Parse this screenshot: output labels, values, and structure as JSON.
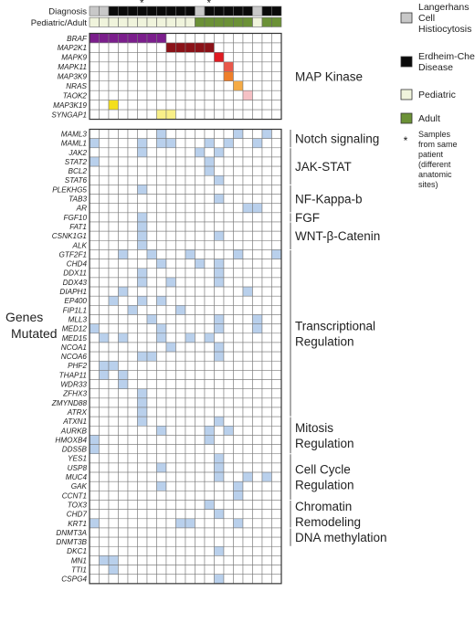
{
  "chart_data": {
    "type": "heatmap",
    "n_samples": 20,
    "star_columns": [
      5,
      12
    ],
    "star_symbol": "*",
    "header_rows": [
      {
        "label": "Diagnosis",
        "values": [
          "LCH",
          "LCH",
          "ECD",
          "ECD",
          "ECD",
          "ECD",
          "ECD",
          "ECD",
          "ECD",
          "ECD",
          "ECD",
          "LCH",
          "ECD",
          "ECD",
          "ECD",
          "ECD",
          "ECD",
          "LCH",
          "ECD",
          "ECD"
        ]
      },
      {
        "label": "Pediatric/Adult",
        "values": [
          "P",
          "P",
          "P",
          "P",
          "P",
          "P",
          "P",
          "P",
          "P",
          "P",
          "P",
          "A",
          "A",
          "A",
          "A",
          "A",
          "A",
          "P",
          "A",
          "A"
        ]
      }
    ],
    "header_colors": {
      "LCH": "#c8c8c8",
      "ECD": "#0a0a0a",
      "P": "#f0f4dc",
      "A": "#6b9136"
    },
    "genes": [
      "BRAF",
      "MAP2K1",
      "MAPK9",
      "MAPK11",
      "MAP3K9",
      "NRAS",
      "TAOK2",
      "MAP3K19",
      "SYNGAP1",
      "MAML3",
      "MAML1",
      "JAK2",
      "STAT2",
      "BCL2",
      "STAT6",
      "PLEKHG5",
      "TAB3",
      "AR",
      "FGF10",
      "FAT1",
      "CSNK1G1",
      "ALK",
      "GTF2F1",
      "CHD4",
      "DDX11",
      "DDX43",
      "DIAPH1",
      "EP400",
      "FIP1L1",
      "MLL3",
      "MED12",
      "MED15",
      "NCOA1",
      "NCOA6",
      "PHF2",
      "THAP11",
      "WDR33",
      "ZFHX3",
      "ZMYND88",
      "ATRX",
      "ATXN1",
      "AURKB",
      "HMOXB4",
      "DDS5B",
      "YES1",
      "USP8",
      "MUC4",
      "GAK",
      "CCNT1",
      "TOX3",
      "CHD7",
      "KRT1",
      "DNMT3A",
      "DNMT3B",
      "DKC1",
      "MN1",
      "TTI1",
      "CSPG4"
    ],
    "map_kinase_colors": {
      "BRAF": "#7b1e8c",
      "MAP2K1": "#8b1218",
      "MAPK9": "#e01b22",
      "MAPK11": "#e9584b",
      "MAP3K9": "#ef7f2a",
      "NRAS": "#f5ab45",
      "TAOK2": "#f6c1c5",
      "MAP3K19": "#f4df1c",
      "SYNGAP1": "#f8ef88"
    },
    "mutation_color": "#b9d0ec",
    "mutations": {
      "BRAF": [
        0,
        1,
        2,
        3,
        4,
        5,
        6,
        7
      ],
      "MAP2K1": [
        8,
        9,
        10,
        11,
        12
      ],
      "MAPK9": [
        13
      ],
      "MAPK11": [
        14
      ],
      "MAP3K9": [
        14
      ],
      "NRAS": [
        15
      ],
      "TAOK2": [
        16
      ],
      "MAP3K19": [
        2
      ],
      "SYNGAP1": [
        7,
        8
      ],
      "MAML3": [
        7,
        15,
        18
      ],
      "MAML1": [
        0,
        5,
        7,
        8,
        12,
        14,
        17
      ],
      "JAK2": [
        5,
        11,
        13
      ],
      "STAT2": [
        0,
        12
      ],
      "BCL2": [
        12
      ],
      "STAT6": [
        13
      ],
      "PLEKHG5": [
        5
      ],
      "TAB3": [
        13
      ],
      "AR": [
        16,
        17
      ],
      "FGF10": [
        5
      ],
      "FAT1": [
        5
      ],
      "CSNK1G1": [
        5,
        13
      ],
      "ALK": [
        5
      ],
      "GTF2F1": [
        3,
        6,
        10,
        15,
        19
      ],
      "CHD4": [
        7,
        11,
        13
      ],
      "DDX11": [
        5,
        13
      ],
      "DDX43": [
        5,
        8,
        13
      ],
      "DIAPH1": [
        3,
        16
      ],
      "EP400": [
        2,
        5,
        7
      ],
      "FIP1L1": [
        4,
        9
      ],
      "MLL3": [
        6,
        13,
        17
      ],
      "MED12": [
        0,
        7,
        13,
        17
      ],
      "MED15": [
        1,
        3,
        7,
        10,
        12
      ],
      "NCOA1": [
        8,
        13
      ],
      "NCOA6": [
        5,
        6,
        13
      ],
      "PHF2": [
        1,
        2
      ],
      "THAP11": [
        1,
        3
      ],
      "WDR33": [
        3
      ],
      "ZFHX3": [
        5
      ],
      "ZMYND88": [
        5
      ],
      "ATRX": [
        5
      ],
      "ATXN1": [
        5,
        13
      ],
      "AURKB": [
        7,
        12,
        14
      ],
      "HMOXB4": [
        0,
        12
      ],
      "DDS5B": [
        0
      ],
      "YES1": [
        13
      ],
      "USP8": [
        7,
        13
      ],
      "MUC4": [
        13,
        16,
        18
      ],
      "GAK": [
        7,
        15
      ],
      "CCNT1": [
        15
      ],
      "TOX3": [
        12
      ],
      "CHD7": [
        13
      ],
      "KRT1": [
        0,
        9,
        10,
        15
      ],
      "DNMT3A": [],
      "DNMT3B": [],
      "DKC1": [
        13
      ],
      "MN1": [
        1,
        2
      ],
      "TTI1": [
        2
      ],
      "CSPG4": [
        13
      ]
    },
    "categories": [
      {
        "label": "MAP Kinase",
        "start": "BRAF",
        "end": "SYNGAP1",
        "bracket": false
      },
      {
        "label": "Notch signaling",
        "start": "MAML3",
        "end": "MAML1",
        "bracket": true
      },
      {
        "label": "JAK-STAT",
        "start": "JAK2",
        "end": "STAT6",
        "bracket": true
      },
      {
        "label": "NF-Kappa-b",
        "start": "PLEKHG5",
        "end": "AR",
        "bracket": true
      },
      {
        "label": "FGF",
        "start": "FGF10",
        "end": "FGF10",
        "bracket": true
      },
      {
        "label": "WNT-β-Catenin",
        "start": "FAT1",
        "end": "ALK",
        "bracket": true
      },
      {
        "label": "Transcriptional Regulation",
        "start": "GTF2F1",
        "end": "ATRX",
        "bracket": true
      },
      {
        "label": "Mitosis Regulation",
        "start": "ATXN1",
        "end": "DDS5B",
        "bracket": true
      },
      {
        "label": "Cell Cycle Regulation",
        "start": "YES1",
        "end": "CCNT1",
        "bracket": true
      },
      {
        "label": "Chromatin Remodeling",
        "start": "TOX3",
        "end": "KRT1",
        "bracket": true
      },
      {
        "label": "DNA methylation",
        "start": "DNMT3A",
        "end": "DNMT3B",
        "bracket": true
      }
    ],
    "y_title": "Genes Mutated",
    "legend": [
      {
        "key": "LCH",
        "label": "Langerhans Cell Histiocytosis",
        "color": "#c8c8c8"
      },
      {
        "key": "ECD",
        "label": "Erdheim-Chester Disease",
        "color": "#0a0a0a"
      },
      {
        "key": "P",
        "label": "Pediatric",
        "color": "#f0f4dc"
      },
      {
        "key": "A",
        "label": "Adult",
        "color": "#6b9136"
      },
      {
        "key": "star",
        "label": "Samples from same patient (different anatomic sites)",
        "symbol": "*"
      }
    ]
  }
}
